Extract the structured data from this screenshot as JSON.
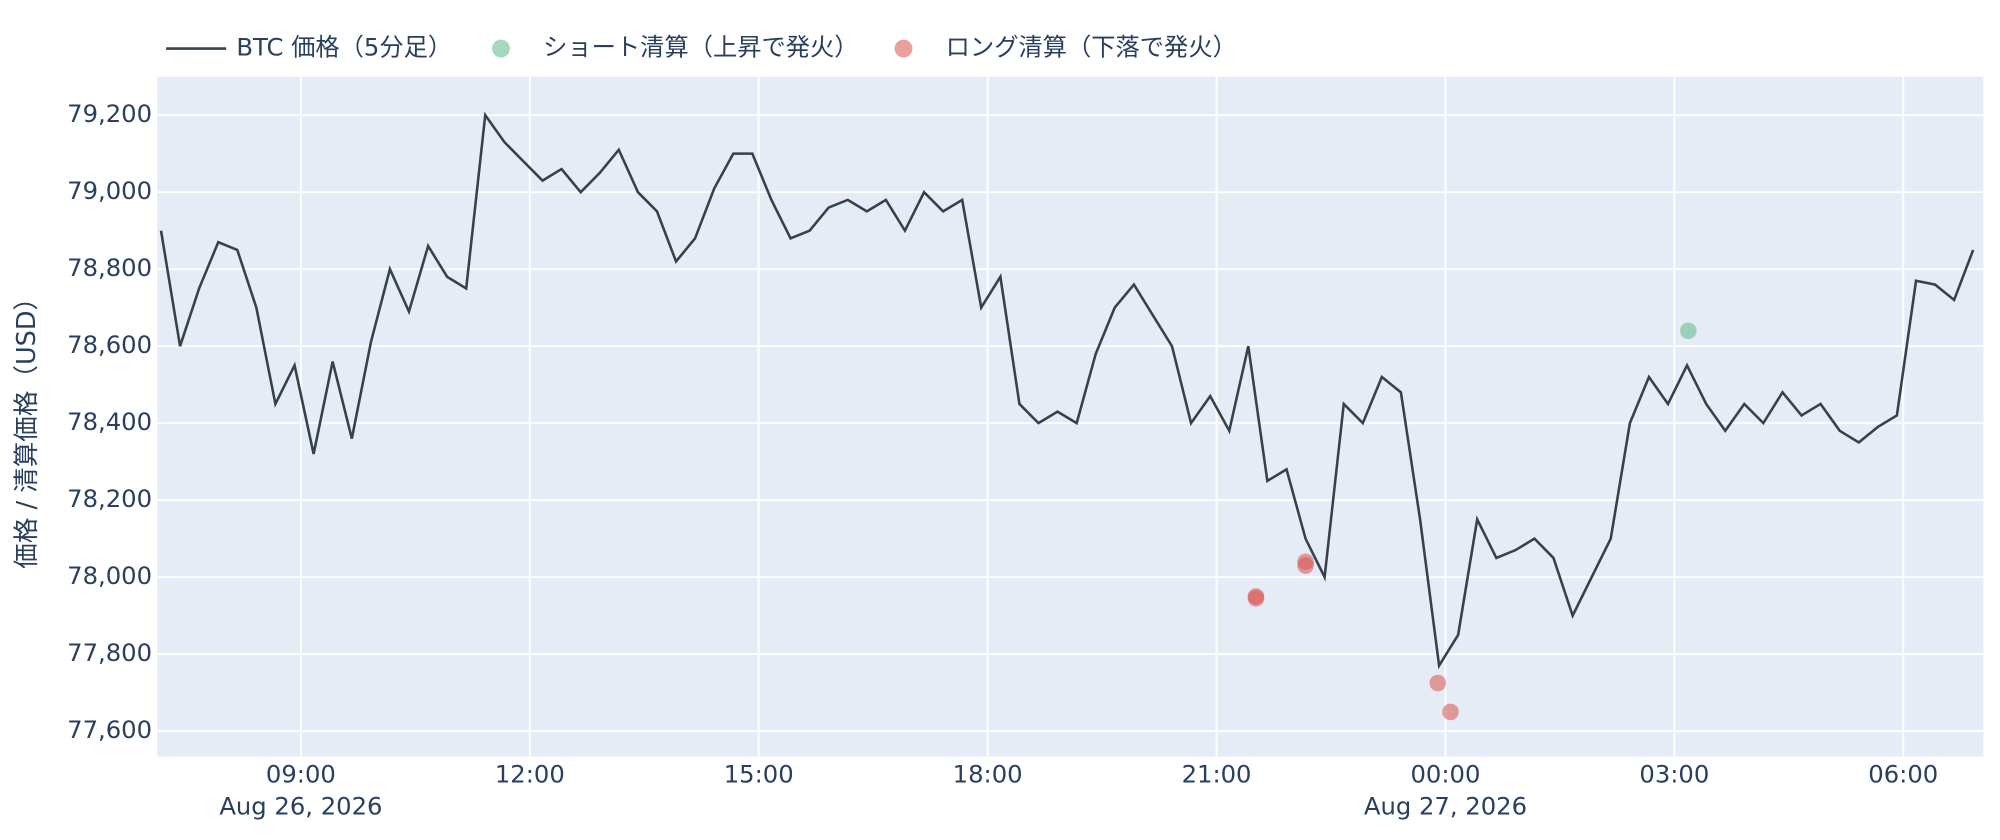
{
  "chart_data": {
    "type": "line",
    "y_title": "価格 / 清算価格（USD）",
    "xlim": [
      "2026-08-26 07:07",
      "2026-08-27 07:03"
    ],
    "xticks": [
      {
        "value": "2026-08-26 09:00",
        "label": "09:00"
      },
      {
        "value": "2026-08-26 12:00",
        "label": "12:00"
      },
      {
        "value": "2026-08-26 15:00",
        "label": "15:00"
      },
      {
        "value": "2026-08-26 18:00",
        "label": "18:00"
      },
      {
        "value": "2026-08-26 21:00",
        "label": "21:00"
      },
      {
        "value": "2026-08-27 00:00",
        "label": "00:00"
      },
      {
        "value": "2026-08-27 03:00",
        "label": "03:00"
      },
      {
        "value": "2026-08-27 06:00",
        "label": "06:00"
      }
    ],
    "xtick_dates": [
      {
        "value": "2026-08-26 09:00",
        "label": "Aug 26, 2026"
      },
      {
        "value": "2026-08-27 00:00",
        "label": "Aug 27, 2026"
      }
    ],
    "ylim": [
      77534,
      79300
    ],
    "yticks": [
      {
        "value": 77600,
        "label": "77,600"
      },
      {
        "value": 77800,
        "label": "77,800"
      },
      {
        "value": 78000,
        "label": "78,000"
      },
      {
        "value": 78200,
        "label": "78,200"
      },
      {
        "value": 78400,
        "label": "78,400"
      },
      {
        "value": 78600,
        "label": "78,600"
      },
      {
        "value": 78800,
        "label": "78,800"
      },
      {
        "value": 79000,
        "label": "79,000"
      },
      {
        "value": 79200,
        "label": "79,200"
      }
    ],
    "grid": true,
    "series": [
      {
        "name": "BTC 価格（5分足）",
        "type": "line",
        "color": "#36414c",
        "x": [
          "2026-08-26 07:10",
          "2026-08-26 07:25",
          "2026-08-26 07:40",
          "2026-08-26 07:55",
          "2026-08-26 08:10",
          "2026-08-26 08:25",
          "2026-08-26 08:40",
          "2026-08-26 08:55",
          "2026-08-26 09:10",
          "2026-08-26 09:25",
          "2026-08-26 09:40",
          "2026-08-26 09:55",
          "2026-08-26 10:10",
          "2026-08-26 10:25",
          "2026-08-26 10:40",
          "2026-08-26 10:55",
          "2026-08-26 11:10",
          "2026-08-26 11:25",
          "2026-08-26 11:40",
          "2026-08-26 11:55",
          "2026-08-26 12:10",
          "2026-08-26 12:25",
          "2026-08-26 12:40",
          "2026-08-26 12:55",
          "2026-08-26 13:10",
          "2026-08-26 13:25",
          "2026-08-26 13:40",
          "2026-08-26 13:55",
          "2026-08-26 14:10",
          "2026-08-26 14:25",
          "2026-08-26 14:40",
          "2026-08-26 14:55",
          "2026-08-26 15:10",
          "2026-08-26 15:25",
          "2026-08-26 15:40",
          "2026-08-26 15:55",
          "2026-08-26 16:10",
          "2026-08-26 16:25",
          "2026-08-26 16:40",
          "2026-08-26 16:55",
          "2026-08-26 17:10",
          "2026-08-26 17:25",
          "2026-08-26 17:40",
          "2026-08-26 17:55",
          "2026-08-26 18:10",
          "2026-08-26 18:25",
          "2026-08-26 18:40",
          "2026-08-26 18:55",
          "2026-08-26 19:10",
          "2026-08-26 19:25",
          "2026-08-26 19:40",
          "2026-08-26 19:55",
          "2026-08-26 20:10",
          "2026-08-26 20:25",
          "2026-08-26 20:40",
          "2026-08-26 20:55",
          "2026-08-26 21:10",
          "2026-08-26 21:25",
          "2026-08-26 21:40",
          "2026-08-26 21:55",
          "2026-08-26 22:10",
          "2026-08-26 22:25",
          "2026-08-26 22:40",
          "2026-08-26 22:55",
          "2026-08-26 23:10",
          "2026-08-26 23:25",
          "2026-08-26 23:40",
          "2026-08-26 23:55",
          "2026-08-27 00:10",
          "2026-08-27 00:25",
          "2026-08-27 00:40",
          "2026-08-27 00:55",
          "2026-08-27 01:10",
          "2026-08-27 01:25",
          "2026-08-27 01:40",
          "2026-08-27 01:55",
          "2026-08-27 02:10",
          "2026-08-27 02:25",
          "2026-08-27 02:40",
          "2026-08-27 02:55",
          "2026-08-27 03:10",
          "2026-08-27 03:25",
          "2026-08-27 03:40",
          "2026-08-27 03:55",
          "2026-08-27 04:10",
          "2026-08-27 04:25",
          "2026-08-27 04:40",
          "2026-08-27 04:55",
          "2026-08-27 05:10",
          "2026-08-27 05:25",
          "2026-08-27 05:40",
          "2026-08-27 05:55",
          "2026-08-27 06:10",
          "2026-08-27 06:25",
          "2026-08-27 06:40",
          "2026-08-27 06:55"
        ],
        "values": [
          78900,
          78600,
          78750,
          78870,
          78850,
          78700,
          78450,
          78550,
          78320,
          78560,
          78360,
          78610,
          78800,
          78690,
          78860,
          78780,
          78750,
          79200,
          79130,
          79080,
          79030,
          79060,
          79000,
          79050,
          79110,
          79000,
          78950,
          78820,
          78880,
          79010,
          79100,
          79100,
          78980,
          78880,
          78900,
          78960,
          78980,
          78950,
          78980,
          78900,
          79000,
          78950,
          78980,
          78700,
          78780,
          78450,
          78400,
          78430,
          78400,
          78580,
          78700,
          78760,
          78680,
          78600,
          78400,
          78470,
          78380,
          78600,
          78250,
          78280,
          78100,
          78000,
          78450,
          78400,
          78520,
          78480,
          78150,
          77770,
          77850,
          78150,
          78050,
          78070,
          78100,
          78050,
          77900,
          78000,
          78100,
          78400,
          78520,
          78450,
          78550,
          78450,
          78380,
          78450,
          78400,
          78480,
          78420,
          78450,
          78380,
          78350,
          78390,
          78420,
          78770,
          78760,
          78720,
          78850
        ]
      },
      {
        "name": "ショート清算（上昇で発火）",
        "type": "scatter",
        "color": "#5cb887",
        "x": [
          "2026-08-27 03:11"
        ],
        "values": [
          78640
        ]
      },
      {
        "name": "ロング清算（下落で発火）",
        "type": "scatter",
        "color": "#d9534f",
        "x": [
          "2026-08-26 21:31",
          "2026-08-26 21:31",
          "2026-08-26 22:10",
          "2026-08-26 22:10",
          "2026-08-26 23:54",
          "2026-08-27 00:04"
        ],
        "values": [
          77950,
          77945,
          78040,
          78030,
          77725,
          77650
        ]
      }
    ]
  }
}
